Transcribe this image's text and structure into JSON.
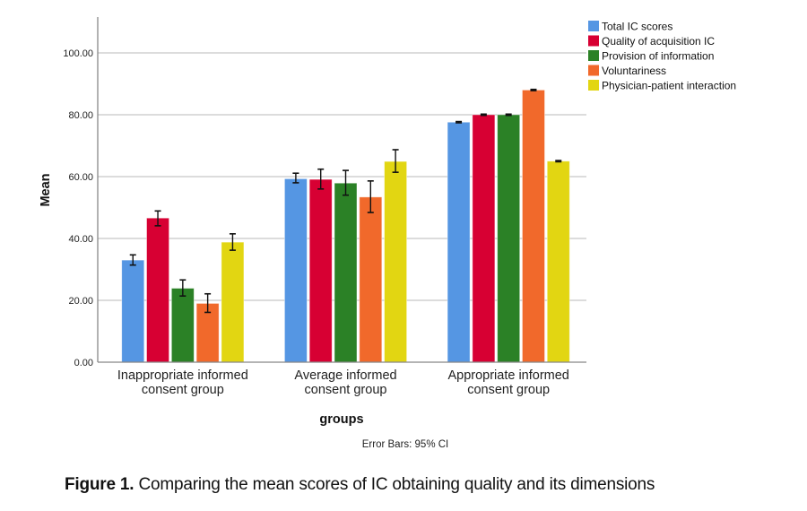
{
  "chart_data": {
    "type": "bar",
    "title": "",
    "xlabel": "groups",
    "ylabel": "Mean",
    "ylim": [
      0,
      110
    ],
    "yticks": [
      0,
      20,
      40,
      60,
      80,
      100
    ],
    "ytick_labels": [
      "0.00",
      "20.00",
      "40.00",
      "60.00",
      "80.00",
      "100.00"
    ],
    "grid": true,
    "legend_position": "top-right",
    "note": "Error Bars: 95% CI",
    "categories": [
      [
        "Inappropriate informed",
        "consent group"
      ],
      [
        "Average informed",
        "consent group"
      ],
      [
        "Appropriate informed",
        "consent group"
      ]
    ],
    "series": [
      {
        "name": "Total IC scores",
        "color": "#5596e3",
        "values": [
          33.0,
          59.3,
          77.6
        ],
        "ci_low": [
          31.4,
          58.0,
          77.4
        ],
        "ci_high": [
          34.7,
          61.1,
          77.8
        ]
      },
      {
        "name": "Quality of acquisition IC",
        "color": "#d70033",
        "values": [
          46.6,
          59.1,
          80.0
        ],
        "ci_low": [
          44.1,
          56.0,
          79.8
        ],
        "ci_high": [
          48.9,
          62.4,
          80.2
        ]
      },
      {
        "name": "Provision of information",
        "color": "#2b8126",
        "values": [
          23.9,
          57.9,
          80.0
        ],
        "ci_low": [
          21.4,
          54.0,
          79.8
        ],
        "ci_high": [
          26.6,
          62.0,
          80.2
        ]
      },
      {
        "name": "Voluntariness",
        "color": "#f1692b",
        "values": [
          19.0,
          53.4,
          88.0
        ],
        "ci_low": [
          16.1,
          48.4,
          87.8
        ],
        "ci_high": [
          22.1,
          58.6,
          88.2
        ]
      },
      {
        "name": "Physician-patient interaction",
        "color": "#e2d612",
        "values": [
          38.8,
          64.9,
          65.0
        ],
        "ci_low": [
          36.2,
          61.4,
          64.8
        ],
        "ci_high": [
          41.5,
          68.7,
          65.2
        ]
      }
    ]
  },
  "caption": {
    "label": "Figure 1.",
    "text": " Comparing the mean scores of IC obtaining quality and its dimensions"
  }
}
